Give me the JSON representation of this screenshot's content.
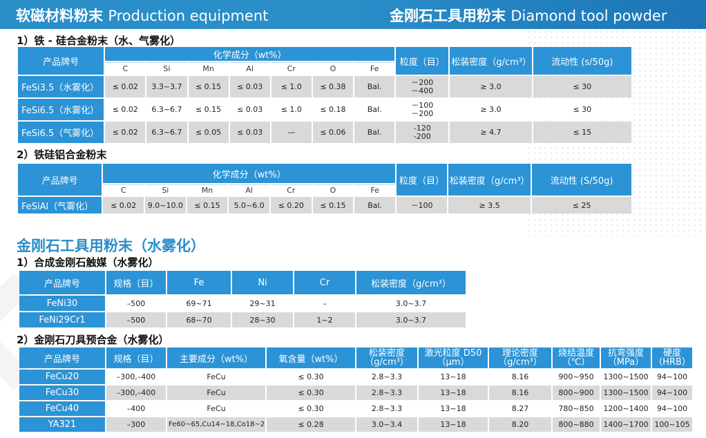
{
  "header": {
    "left_cn": "软磁材料粉末",
    "left_en": "Production equipment",
    "right_cn": "金刚石工具用粉末",
    "right_en": "Diamond tool powder"
  },
  "section1": {
    "title": "1）铁 - 硅合金粉末（水、气雾化）",
    "headers": {
      "product": "产品牌号",
      "composition": "化学成分（wt%）",
      "particle": "粒度（目）",
      "density": "松装密度（g/cm³）",
      "flow": "流动性 (s/50g)"
    },
    "elements": [
      "C",
      "Si",
      "Mn",
      "Al",
      "Cr",
      "O",
      "Fe"
    ],
    "rows": [
      {
        "name": "FeSi3.5（水雾化）",
        "vals": [
          "≤ 0.02",
          "3.3~3.7",
          "≤ 0.15",
          "≤ 0.03",
          "≤ 1.0",
          "≤ 0.38",
          "Bal."
        ],
        "particle1": "－200",
        "particle2": "－400",
        "density": "≥ 3.0",
        "flow": "≤ 30"
      },
      {
        "name": "FeSi6.5（水雾化）",
        "vals": [
          "≤ 0.02",
          "6.3~6.7",
          "≤ 0.15",
          "≤ 0.03",
          "≤ 1.0",
          "≤ 0.18",
          "Bal."
        ],
        "particle1": "－100",
        "particle2": "－200",
        "density": "≥ 3.0",
        "flow": "≤ 30"
      },
      {
        "name": "FeSi6.5（气雾化）",
        "vals": [
          "≤ 0.02",
          "6.3~6.7",
          "≤ 0.05",
          "≤ 0.03",
          "—",
          "≤ 0.06",
          "Bal."
        ],
        "particle1": "-120",
        "particle2": "-200",
        "density": "≥ 4.7",
        "flow": "≤ 15"
      }
    ]
  },
  "section2": {
    "title": "2）铁硅铝合金粉末",
    "headers": {
      "product": "产品牌号",
      "composition": "化学成分（wt%）",
      "particle": "粒度（目）",
      "density": "松装密度（g/cm³）",
      "flow": "流动性 (S/50g)"
    },
    "elements": [
      "C",
      "Si",
      "Mn",
      "Al",
      "Cr",
      "O",
      "Fe"
    ],
    "rows": [
      {
        "name": "FeSiAl（气雾化）",
        "vals": [
          "≤ 0.02",
          "9.0~10.0",
          "≤ 0.15",
          "5.0~6.0",
          "≤ 0.20",
          "≤ 0.15",
          "Bal."
        ],
        "particle": "－100",
        "density": "≥ 3.5",
        "flow": "≤ 25"
      }
    ]
  },
  "diamond_title": "金刚石工具用粉末（水雾化）",
  "section3": {
    "title": "1）合成金刚石触媒（水雾化）",
    "headers": [
      "产品牌号",
      "规格（目）",
      "Fe",
      "Ni",
      "Cr",
      "松装密度（g/cm³）"
    ],
    "rows": [
      [
        "FeNi30",
        "–500",
        "69~71",
        "29~31",
        "–",
        "3.0~3.7"
      ],
      [
        "FeNi29Cr1",
        "–500",
        "68~70",
        "28~30",
        "1~2",
        "3.0~3.7"
      ]
    ]
  },
  "section4": {
    "title": "2）金刚石刀具预合金（水雾化）",
    "headers": {
      "product": "产品牌号",
      "spec": "规格（目）",
      "main": "主要成分（wt%）",
      "oxygen": "氧含量（wt%）",
      "density_l1": "松装密度",
      "density_l2": "（g/cm³）",
      "laser_l1": "激光粒度 D50",
      "laser_l2": "（μm）",
      "theory_l1": "理论密度",
      "theory_l2": "（g/cm³）",
      "sinter_l1": "烧结温度",
      "sinter_l2": "（℃）",
      "bend_l1": "抗弯强度",
      "bend_l2": "（MPa）",
      "hard_l1": "硬度",
      "hard_l2": "（HRB）"
    },
    "rows": [
      [
        "FeCu20",
        "–300,–400",
        "FeCu",
        "≤ 0.30",
        "2.8~3.3",
        "13~18",
        "8.16",
        "900~950",
        "1300~1500",
        "94~100"
      ],
      [
        "FeCu30",
        "–300,–400",
        "FeCu",
        "≤ 0.30",
        "2.8~3.3",
        "13~18",
        "8.16",
        "800~900",
        "1300~1500",
        "94~100"
      ],
      [
        "FeCu40",
        "–400",
        "FeCu",
        "≤ 0.30",
        "2.8~3.3",
        "13~18",
        "8.27",
        "780~850",
        "1200~1400",
        "94~100"
      ],
      [
        "YA321",
        "–300",
        "Fe60~65,Cu14~18,Co18~23",
        "≤ 0.28",
        "3.0~3.4",
        "13~18",
        "8.20",
        "800~880",
        "1400~1700",
        "100~105"
      ]
    ]
  }
}
